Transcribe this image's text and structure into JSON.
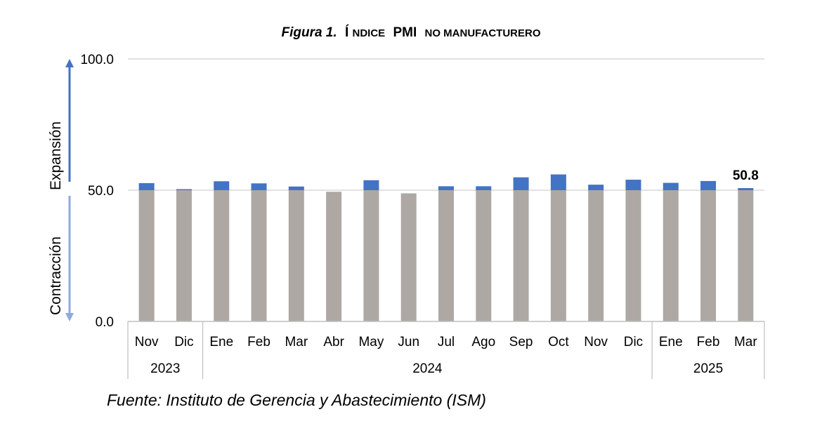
{
  "chart_data": {
    "type": "bar",
    "title_prefix": "Figura 1.",
    "title_initial": "Í",
    "title_ndice": "NDICE",
    "title_pmi": "PMI",
    "title_rest": "NO MANUFACTURERO",
    "categories": [
      "Nov",
      "Dic",
      "Ene",
      "Feb",
      "Mar",
      "Abr",
      "May",
      "Jun",
      "Jul",
      "Ago",
      "Sep",
      "Oct",
      "Nov",
      "Dic",
      "Ene",
      "Feb",
      "Mar"
    ],
    "years": [
      {
        "label": "2023",
        "count": 2
      },
      {
        "label": "2024",
        "count": 12
      },
      {
        "label": "2025",
        "count": 3
      }
    ],
    "values": [
      52.7,
      50.4,
      53.4,
      52.6,
      51.4,
      49.4,
      53.8,
      48.8,
      51.5,
      51.5,
      54.9,
      56.0,
      52.1,
      54.0,
      52.8,
      53.5,
      50.8
    ],
    "baseline": 50,
    "ylim": [
      0,
      100
    ],
    "yticks": [
      "0.0",
      "50.0",
      "100.0"
    ],
    "ylabel_top": "Expansión",
    "ylabel_bottom": "Contracción",
    "highlight_label": "50.8",
    "colors": {
      "below": "#aea8a5",
      "above": "#4472c4",
      "arrow_up": "#4472c4",
      "arrow_down": "#8faadc",
      "grid": "#d9d9d9",
      "axis": "#bfbfbf"
    },
    "grid": true
  },
  "source": "Fuente: Instituto de Gerencia y Abastecimiento (ISM)"
}
